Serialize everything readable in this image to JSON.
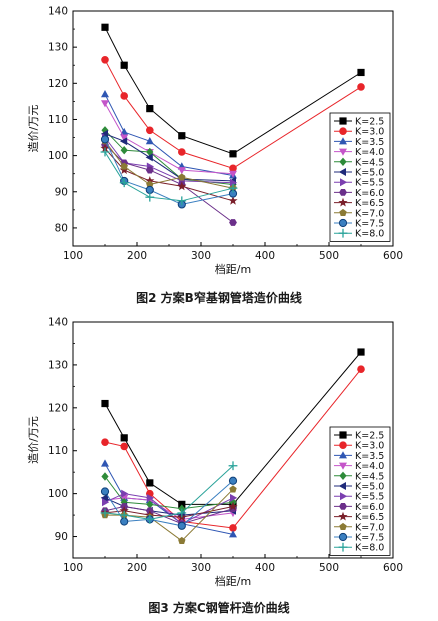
{
  "figures": [
    {
      "caption": "图2   方案B窄基钢管塔造价曲线"
    },
    {
      "caption": "图3   方案C钢管杆造价曲线"
    }
  ],
  "series_style": [
    {
      "color": "#000000",
      "marker": "square"
    },
    {
      "color": "#e8252a",
      "marker": "circle"
    },
    {
      "color": "#2f56b3",
      "marker": "triangle-up"
    },
    {
      "color": "#c455c9",
      "marker": "triangle-down"
    },
    {
      "color": "#2e8b3a",
      "marker": "diamond"
    },
    {
      "color": "#1f2a7a",
      "marker": "triangle-left"
    },
    {
      "color": "#7b3fb0",
      "marker": "triangle-right"
    },
    {
      "color": "#6b2f8a",
      "marker": "hexagon"
    },
    {
      "color": "#7a1f2a",
      "marker": "star"
    },
    {
      "color": "#8b7a35",
      "marker": "pentagon"
    },
    {
      "color": "#3a7fc0",
      "marker": "circle-ring"
    },
    {
      "color": "#2aa39a",
      "marker": "plus"
    }
  ],
  "chart_data": [
    {
      "type": "line",
      "xlabel": "档距/m",
      "ylabel": "造价/万元",
      "xlim": [
        100,
        600
      ],
      "ylim": [
        75,
        140
      ],
      "xticks": [
        100,
        200,
        300,
        400,
        500,
        600
      ],
      "yticks": [
        80,
        90,
        100,
        110,
        120,
        130,
        140
      ],
      "legend_position": "right",
      "series": [
        {
          "name": "K=2.5",
          "x": [
            150,
            180,
            220,
            270,
            350,
            550
          ],
          "y": [
            135.5,
            125,
            113,
            105.5,
            100.5,
            123
          ]
        },
        {
          "name": "K=3.0",
          "x": [
            150,
            180,
            220,
            270,
            350,
            550
          ],
          "y": [
            126.5,
            116.5,
            107,
            101,
            96.5,
            119
          ]
        },
        {
          "name": "K=3.5",
          "x": [
            150,
            180,
            220,
            270,
            350
          ],
          "y": [
            117,
            106.5,
            104,
            97,
            94.5
          ]
        },
        {
          "name": "K=4.0",
          "x": [
            150,
            180,
            220,
            270,
            350
          ],
          "y": [
            114.5,
            105,
            101,
            96,
            95
          ]
        },
        {
          "name": "K=4.5",
          "x": [
            150,
            180,
            220,
            270,
            350
          ],
          "y": [
            107,
            101.5,
            101,
            93.5,
            92
          ]
        },
        {
          "name": "K=5.0",
          "x": [
            150,
            180,
            220,
            270,
            350
          ],
          "y": [
            106,
            104,
            99.5,
            93.5,
            93
          ]
        },
        {
          "name": "K=5.5",
          "x": [
            150,
            180,
            220,
            270,
            350
          ],
          "y": [
            105,
            98,
            97,
            93,
            92.5
          ]
        },
        {
          "name": "K=6.0",
          "x": [
            150,
            180,
            220,
            270,
            350
          ],
          "y": [
            103,
            98,
            96,
            92,
            81.5
          ]
        },
        {
          "name": "K=6.5",
          "x": [
            150,
            180,
            220,
            270,
            350
          ],
          "y": [
            102,
            96,
            93,
            91.5,
            87.5
          ]
        },
        {
          "name": "K=7.0",
          "x": [
            150,
            180,
            220,
            270,
            350
          ],
          "y": [
            104,
            97,
            92,
            94,
            91
          ]
        },
        {
          "name": "K=7.5",
          "x": [
            150,
            180,
            220,
            270,
            350
          ],
          "y": [
            104.5,
            93,
            90.5,
            86.5,
            89.5
          ]
        },
        {
          "name": "K=8.0",
          "x": [
            150,
            180,
            220,
            270,
            350
          ],
          "y": [
            101,
            92.5,
            88.5,
            87.5,
            91
          ]
        }
      ]
    },
    {
      "type": "line",
      "xlabel": "档距/m",
      "ylabel": "造价/万元",
      "xlim": [
        100,
        600
      ],
      "ylim": [
        85,
        140
      ],
      "xticks": [
        100,
        200,
        300,
        400,
        500,
        600
      ],
      "yticks": [
        90,
        100,
        110,
        120,
        130,
        140
      ],
      "legend_position": "right",
      "series": [
        {
          "name": "K=2.5",
          "x": [
            150,
            180,
            220,
            270,
            350,
            550
          ],
          "y": [
            121,
            113,
            102.5,
            97.5,
            97.5,
            133
          ]
        },
        {
          "name": "K=3.0",
          "x": [
            150,
            180,
            220,
            270,
            350,
            550
          ],
          "y": [
            112,
            111,
            100,
            93.5,
            92,
            129
          ]
        },
        {
          "name": "K=3.5",
          "x": [
            150,
            180,
            220,
            270,
            350
          ],
          "y": [
            107,
            99,
            98.5,
            93,
            90.5
          ]
        },
        {
          "name": "K=4.0",
          "x": [
            150,
            180,
            220,
            270,
            350
          ],
          "y": [
            98.5,
            99,
            98.5,
            94,
            95.5
          ]
        },
        {
          "name": "K=4.5",
          "x": [
            150,
            180,
            220,
            270,
            350
          ],
          "y": [
            104,
            98,
            97.5,
            96.5,
            98
          ]
        },
        {
          "name": "K=5.0",
          "x": [
            150,
            180,
            220,
            270,
            350
          ],
          "y": [
            99,
            97,
            96,
            95,
            96
          ]
        },
        {
          "name": "K=5.5",
          "x": [
            150,
            180,
            220,
            270,
            350
          ],
          "y": [
            98,
            100,
            99,
            93,
            99
          ]
        },
        {
          "name": "K=6.0",
          "x": [
            150,
            180,
            220,
            270,
            350
          ],
          "y": [
            96,
            97,
            96,
            93,
            96.5
          ]
        },
        {
          "name": "K=6.5",
          "x": [
            150,
            180,
            220,
            270,
            350
          ],
          "y": [
            95.5,
            96,
            95,
            94.5,
            97
          ]
        },
        {
          "name": "K=7.0",
          "x": [
            150,
            180,
            220,
            270,
            350
          ],
          "y": [
            95,
            95,
            94.5,
            89,
            101
          ]
        },
        {
          "name": "K=7.5",
          "x": [
            150,
            180,
            220,
            270,
            350
          ],
          "y": [
            100.5,
            93.5,
            94,
            92.5,
            103
          ]
        },
        {
          "name": "K=8.0",
          "x": [
            150,
            180,
            220,
            270,
            350
          ],
          "y": [
            95.5,
            95,
            94,
            95.5,
            106.5
          ]
        }
      ]
    }
  ]
}
